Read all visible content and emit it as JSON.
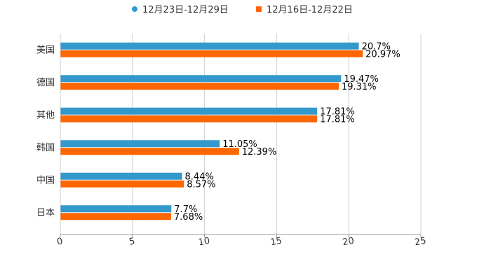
{
  "chart_data": {
    "type": "bar",
    "orientation": "horizontal",
    "title": "",
    "xlabel": "",
    "ylabel": "",
    "xlim": [
      0,
      25
    ],
    "x_ticks": [
      0,
      5,
      10,
      15,
      20,
      25
    ],
    "x_tick_labels": [
      "0",
      "5",
      "10",
      "15",
      "20",
      "25"
    ],
    "grid": true,
    "legend_position": "top-center",
    "categories": [
      "美国",
      "德国",
      "其他",
      "韩国",
      "中国",
      "日本"
    ],
    "series": [
      {
        "name": "12月23日-12月29日",
        "color": "#3399CC",
        "values": [
          20.7,
          19.47,
          17.81,
          11.05,
          8.44,
          7.7
        ],
        "labels": [
          "20.7%",
          "19.47%",
          "17.81%",
          "11.05%",
          "8.44%",
          "7.7%"
        ]
      },
      {
        "name": "12月16日-12月22日",
        "color": "#FF6600",
        "values": [
          20.97,
          19.31,
          17.81,
          12.39,
          8.57,
          7.68
        ],
        "labels": [
          "20.97%",
          "19.31%",
          "17.81%",
          "12.39%",
          "8.57%",
          "7.68%"
        ]
      }
    ]
  }
}
